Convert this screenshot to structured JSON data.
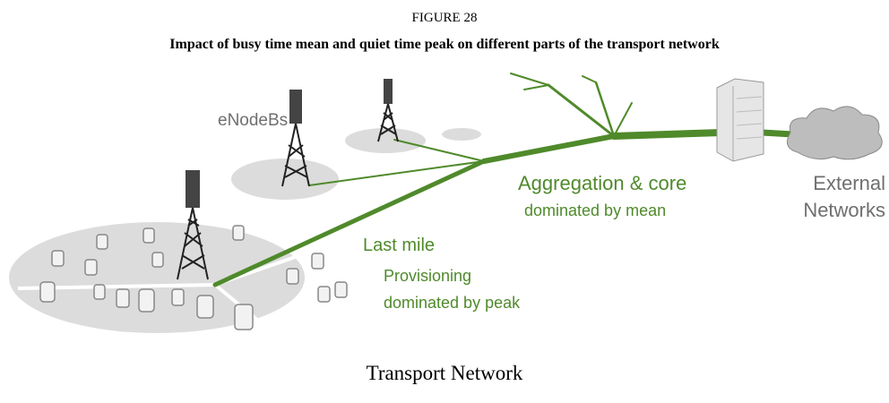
{
  "figure": {
    "label": "FIGURE 28",
    "title": "Impact of busy time mean and quiet time peak on different parts of the transport network"
  },
  "labels": {
    "enodebs": "eNodeBs",
    "aggregation": "Aggregation & core",
    "aggregation_note": "dominated by mean",
    "external_1": "External",
    "external_2": "Networks",
    "last_mile": "Last mile",
    "provisioning_1": "Provisioning",
    "provisioning_2": "dominated by peak"
  },
  "caption": "Transport Network"
}
